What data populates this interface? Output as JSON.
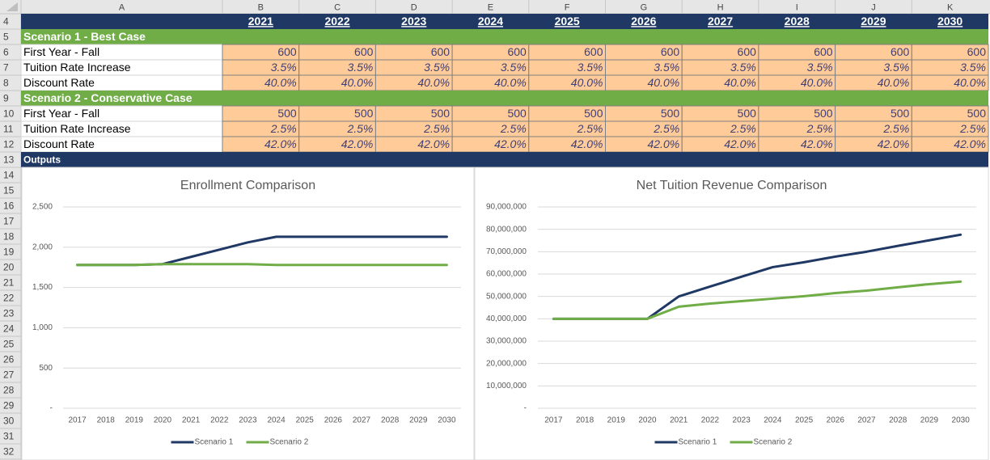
{
  "sheet": {
    "column_headers": [
      "A",
      "B",
      "C",
      "D",
      "E",
      "F",
      "G",
      "H",
      "I",
      "J",
      "K"
    ],
    "row_numbers": [
      4,
      5,
      6,
      7,
      8,
      9,
      10,
      11,
      12,
      13,
      14,
      15,
      16,
      17,
      18,
      19,
      20,
      21,
      22,
      23,
      24,
      25,
      26,
      27,
      28,
      29,
      30,
      31,
      32
    ],
    "years": [
      2021,
      2022,
      2023,
      2024,
      2025,
      2026,
      2027,
      2028,
      2029,
      2030
    ],
    "sections": [
      {
        "title": "Scenario 1 - Best Case",
        "rows": [
          {
            "label": "First Year - Fall",
            "values": [
              600,
              600,
              600,
              600,
              600,
              600,
              600,
              600,
              600,
              600
            ]
          },
          {
            "label": "Tuition Rate Increase",
            "values": [
              "3.5%",
              "3.5%",
              "3.5%",
              "3.5%",
              "3.5%",
              "3.5%",
              "3.5%",
              "3.5%",
              "3.5%",
              "3.5%"
            ]
          },
          {
            "label": "Discount Rate",
            "values": [
              "40.0%",
              "40.0%",
              "40.0%",
              "40.0%",
              "40.0%",
              "40.0%",
              "40.0%",
              "40.0%",
              "40.0%",
              "40.0%"
            ]
          }
        ]
      },
      {
        "title": "Scenario 2 - Conservative Case",
        "rows": [
          {
            "label": "First Year - Fall",
            "values": [
              500,
              500,
              500,
              500,
              500,
              500,
              500,
              500,
              500,
              500
            ]
          },
          {
            "label": "Tuition Rate Increase",
            "values": [
              "2.5%",
              "2.5%",
              "2.5%",
              "2.5%",
              "2.5%",
              "2.5%",
              "2.5%",
              "2.5%",
              "2.5%",
              "2.5%"
            ]
          },
          {
            "label": "Discount Rate",
            "values": [
              "42.0%",
              "42.0%",
              "42.0%",
              "42.0%",
              "42.0%",
              "42.0%",
              "42.0%",
              "42.0%",
              "42.0%",
              "42.0%"
            ]
          }
        ]
      }
    ],
    "outputs_label": "Outputs"
  },
  "chart_data": [
    {
      "type": "line",
      "title": "Enrollment Comparison",
      "categories": [
        "2017",
        "2018",
        "2019",
        "2020",
        "2021",
        "2022",
        "2023",
        "2024",
        "2025",
        "2026",
        "2027",
        "2028",
        "2029",
        "2030"
      ],
      "series": [
        {
          "name": "Scenario 1",
          "color": "#1F3864",
          "values": [
            1780,
            1780,
            1780,
            1790,
            1880,
            1970,
            2060,
            2130,
            2130,
            2130,
            2130,
            2130,
            2130,
            2130
          ]
        },
        {
          "name": "Scenario 2",
          "color": "#70AD47",
          "values": [
            1780,
            1780,
            1780,
            1790,
            1790,
            1790,
            1790,
            1780,
            1780,
            1780,
            1780,
            1780,
            1780,
            1780
          ]
        }
      ],
      "ylim": [
        0,
        2500
      ],
      "yticks": [
        {
          "value": 0,
          "label": "-"
        },
        500,
        {
          "value": 1000,
          "label": "1,000"
        },
        {
          "value": 1500,
          "label": "1,500"
        },
        {
          "value": 2000,
          "label": "2,000"
        },
        {
          "value": 2500,
          "label": "2,500"
        }
      ],
      "grid": true,
      "legend": "bottom"
    },
    {
      "type": "line",
      "title": "Net Tuition Revenue Comparison",
      "categories": [
        "2017",
        "2018",
        "2019",
        "2020",
        "2021",
        "2022",
        "2023",
        "2024",
        "2025",
        "2026",
        "2027",
        "2028",
        "2029",
        "2030"
      ],
      "series": [
        {
          "name": "Scenario 1",
          "color": "#1F3864",
          "values": [
            40000000,
            40000000,
            40000000,
            40000000,
            50000000,
            54400000,
            58800000,
            63100000,
            65300000,
            67800000,
            70000000,
            72600000,
            75100000,
            77600000
          ]
        },
        {
          "name": "Scenario 2",
          "color": "#70AD47",
          "values": [
            40000000,
            40000000,
            40000000,
            40000000,
            45400000,
            46800000,
            47900000,
            49000000,
            50100000,
            51500000,
            52600000,
            54100000,
            55500000,
            56600000
          ]
        }
      ],
      "ylim": [
        0,
        90000000
      ],
      "yticks": [
        {
          "value": 0,
          "label": "-"
        },
        {
          "value": 10000000,
          "label": "10,000,000"
        },
        {
          "value": 20000000,
          "label": "20,000,000"
        },
        {
          "value": 30000000,
          "label": "30,000,000"
        },
        {
          "value": 40000000,
          "label": "40,000,000"
        },
        {
          "value": 50000000,
          "label": "50,000,000"
        },
        {
          "value": 60000000,
          "label": "60,000,000"
        },
        {
          "value": 70000000,
          "label": "70,000,000"
        },
        {
          "value": 80000000,
          "label": "80,000,000"
        },
        {
          "value": 90000000,
          "label": "90,000,000"
        }
      ],
      "grid": true,
      "legend": "bottom"
    }
  ]
}
